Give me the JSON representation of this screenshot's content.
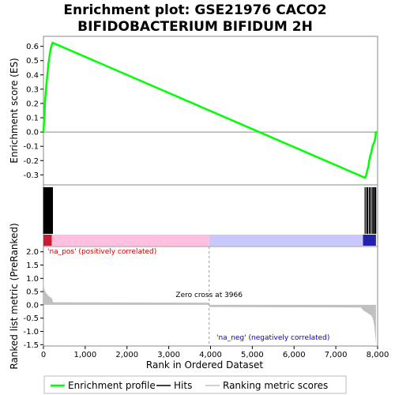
{
  "chart_data": {
    "type": "line",
    "title_line1": "Enrichment plot: GSE21976 CACO2",
    "title_line2": "BIFIDOBACTERIUM BIFIDUM 2H",
    "xlabel": "Rank in Ordered Dataset",
    "xlim": [
      0,
      8000
    ],
    "x_ticks": [
      0,
      1000,
      2000,
      3000,
      4000,
      5000,
      6000,
      7000,
      8000
    ],
    "x_tick_labels": [
      "0",
      "1,000",
      "2,000",
      "3,000",
      "4,000",
      "5,000",
      "6,000",
      "7,000",
      "8,000"
    ],
    "es_panel": {
      "ylabel": "Enrichment score (ES)",
      "ylim": [
        -0.37,
        0.67
      ],
      "y_ticks": [
        -0.3,
        -0.2,
        -0.1,
        0.0,
        0.1,
        0.2,
        0.3,
        0.4,
        0.5,
        0.6
      ],
      "y_tick_labels": [
        "-0.3",
        "-0.2",
        "-0.1",
        "0.0",
        "0.1",
        "0.2",
        "0.3",
        "0.4",
        "0.5",
        "0.6"
      ],
      "series": [
        {
          "name": "Enrichment profile",
          "color": "#00ff00",
          "x": [
            0,
            10,
            20,
            30,
            40,
            50,
            60,
            70,
            80,
            90,
            100,
            110,
            120,
            130,
            140,
            150,
            160,
            170,
            180,
            190,
            200,
            210,
            220,
            7700,
            7730,
            7750,
            7780,
            7800,
            7820,
            7850,
            7870,
            7890,
            7910,
            7930,
            7950,
            7960
          ],
          "y": [
            0.0,
            0.05,
            0.1,
            0.16,
            0.22,
            0.26,
            0.3,
            0.33,
            0.36,
            0.39,
            0.42,
            0.45,
            0.48,
            0.5,
            0.52,
            0.54,
            0.56,
            0.58,
            0.59,
            0.6,
            0.61,
            0.62,
            0.625,
            -0.32,
            -0.3,
            -0.27,
            -0.24,
            -0.2,
            -0.17,
            -0.14,
            -0.11,
            -0.09,
            -0.08,
            -0.06,
            -0.03,
            0.005
          ]
        }
      ]
    },
    "hits_panel": {
      "hit_positions": [
        5,
        15,
        25,
        35,
        45,
        55,
        65,
        75,
        85,
        95,
        105,
        115,
        125,
        135,
        145,
        155,
        165,
        175,
        185,
        195,
        205,
        215,
        7700,
        7740,
        7760,
        7800,
        7830,
        7870,
        7900,
        7930,
        7955
      ],
      "heat_segments": [
        {
          "from": 0,
          "to": 200,
          "color": "#cc1a33"
        },
        {
          "from": 200,
          "to": 3966,
          "color": "#ffc0e0"
        },
        {
          "from": 3966,
          "to": 7650,
          "color": "#c8c8ff"
        },
        {
          "from": 7650,
          "to": 7960,
          "color": "#2222aa"
        }
      ]
    },
    "metric_panel": {
      "ylabel": "Ranked list metric (PreRanked)",
      "ylim": [
        -1.55,
        2.2
      ],
      "y_ticks": [
        -1.5,
        -1.0,
        -0.5,
        0.0,
        0.5,
        1.0,
        1.5,
        2.0
      ],
      "y_tick_labels": [
        "-1.5",
        "-1.0",
        "-0.5",
        "0.0",
        "0.5",
        "1.0",
        "1.5",
        "2.0"
      ],
      "fill_color": "#c0c0c0",
      "x": [
        0,
        10,
        30,
        60,
        100,
        150,
        200,
        220,
        230,
        3966,
        3970,
        7600,
        7650,
        7700,
        7750,
        7800,
        7850,
        7880,
        7900,
        7920,
        7940,
        7960
      ],
      "y": [
        2.0,
        0.7,
        0.55,
        0.45,
        0.38,
        0.3,
        0.25,
        0.15,
        0.1,
        0.08,
        -0.08,
        -0.1,
        -0.2,
        -0.25,
        -0.3,
        -0.35,
        -0.4,
        -0.5,
        -0.6,
        -0.8,
        -1.1,
        -1.45
      ],
      "zero_cross_x": 3966,
      "zero_cross_label": "Zero cross at 3966",
      "pos_label": "'na_pos' (positively correlated)",
      "pos_label_color": "#cc0000",
      "neg_label": "'na_neg' (negatively correlated)",
      "neg_label_color": "#0000cc"
    },
    "legend": {
      "placement": "bottom",
      "items": [
        {
          "label": "Enrichment profile",
          "color": "#00ff00"
        },
        {
          "label": "Hits",
          "color": "#000000"
        },
        {
          "label": "Ranking metric scores",
          "color": "#c0c0c0"
        }
      ]
    }
  }
}
